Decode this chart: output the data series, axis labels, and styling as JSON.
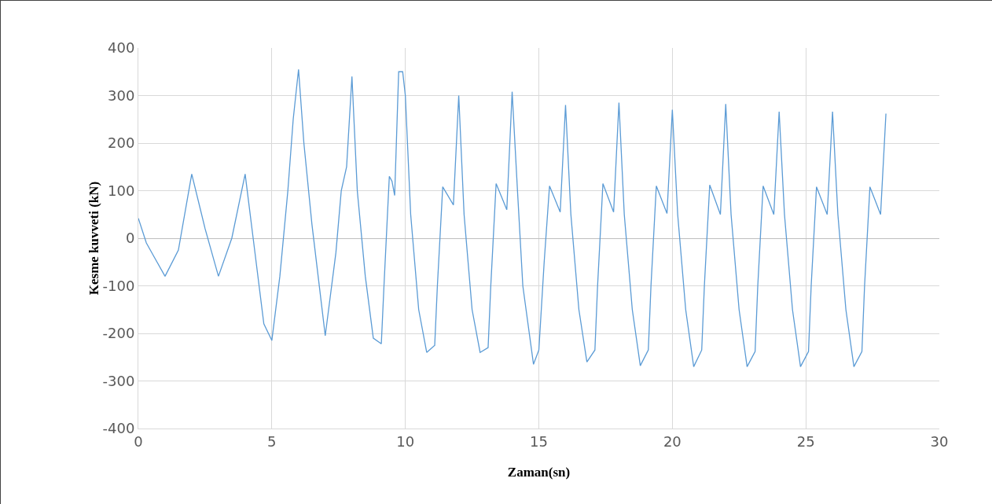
{
  "chart_data": {
    "type": "line",
    "xlabel": "Zaman(sn)",
    "ylabel": "Kesme kuvveti (kN)",
    "xlim": [
      0,
      30
    ],
    "xticks": [
      0,
      5,
      10,
      15,
      20,
      25,
      30
    ],
    "ylim": [
      -400,
      400
    ],
    "yticks": [
      -400,
      -300,
      -200,
      -100,
      0,
      100,
      200,
      300,
      400
    ],
    "grid": true,
    "marker": "none",
    "line_style": "solid",
    "series": [
      {
        "color": "#5b9bd5",
        "x": [
          0,
          0.3,
          0.6,
          1.0,
          1.5,
          2.0,
          2.5,
          3.0,
          3.5,
          4.0,
          4.3,
          4.7,
          5.0,
          5.3,
          5.6,
          5.8,
          6.0,
          6.2,
          6.5,
          7.0,
          7.4,
          7.6,
          7.8,
          8.0,
          8.2,
          8.5,
          8.8,
          9.1,
          9.2,
          9.4,
          9.5,
          9.6,
          9.75,
          9.9,
          10.0,
          10.2,
          10.5,
          10.8,
          11.1,
          11.2,
          11.4,
          11.8,
          12.0,
          12.2,
          12.5,
          12.8,
          13.1,
          13.2,
          13.4,
          13.8,
          14.0,
          14.2,
          14.4,
          14.8,
          15.0,
          15.2,
          15.4,
          15.8,
          16.0,
          16.2,
          16.5,
          16.8,
          17.1,
          17.2,
          17.4,
          17.8,
          18.0,
          18.2,
          18.5,
          18.8,
          19.1,
          19.2,
          19.4,
          19.8,
          20.0,
          20.2,
          20.5,
          20.8,
          21.1,
          21.2,
          21.4,
          21.8,
          22.0,
          22.2,
          22.5,
          22.8,
          23.1,
          23.2,
          23.4,
          23.8,
          24.0,
          24.2,
          24.5,
          24.8,
          25.1,
          25.2,
          25.4,
          25.8,
          26.0,
          26.2,
          26.5,
          26.8,
          27.1,
          27.2,
          27.4,
          27.8,
          28.0
        ],
        "values": [
          42,
          -10,
          -40,
          -80,
          -25,
          135,
          20,
          -80,
          0,
          135,
          0,
          -180,
          -215,
          -80,
          100,
          250,
          355,
          200,
          30,
          -205,
          -30,
          100,
          150,
          340,
          100,
          -80,
          -210,
          -222,
          -100,
          130,
          120,
          90,
          350,
          350,
          300,
          50,
          -150,
          -240,
          -225,
          -100,
          108,
          70,
          300,
          50,
          -150,
          -240,
          -230,
          -100,
          115,
          60,
          308,
          100,
          -100,
          -265,
          -235,
          -50,
          110,
          55,
          280,
          50,
          -150,
          -260,
          -235,
          -100,
          115,
          55,
          285,
          50,
          -150,
          -268,
          -235,
          -100,
          110,
          52,
          270,
          50,
          -150,
          -270,
          -235,
          -100,
          112,
          50,
          282,
          50,
          -150,
          -270,
          -238,
          -100,
          110,
          50,
          266,
          50,
          -150,
          -270,
          -238,
          -100,
          108,
          50,
          266,
          50,
          -150,
          -270,
          -238,
          -100,
          108,
          50,
          262
        ]
      }
    ]
  }
}
